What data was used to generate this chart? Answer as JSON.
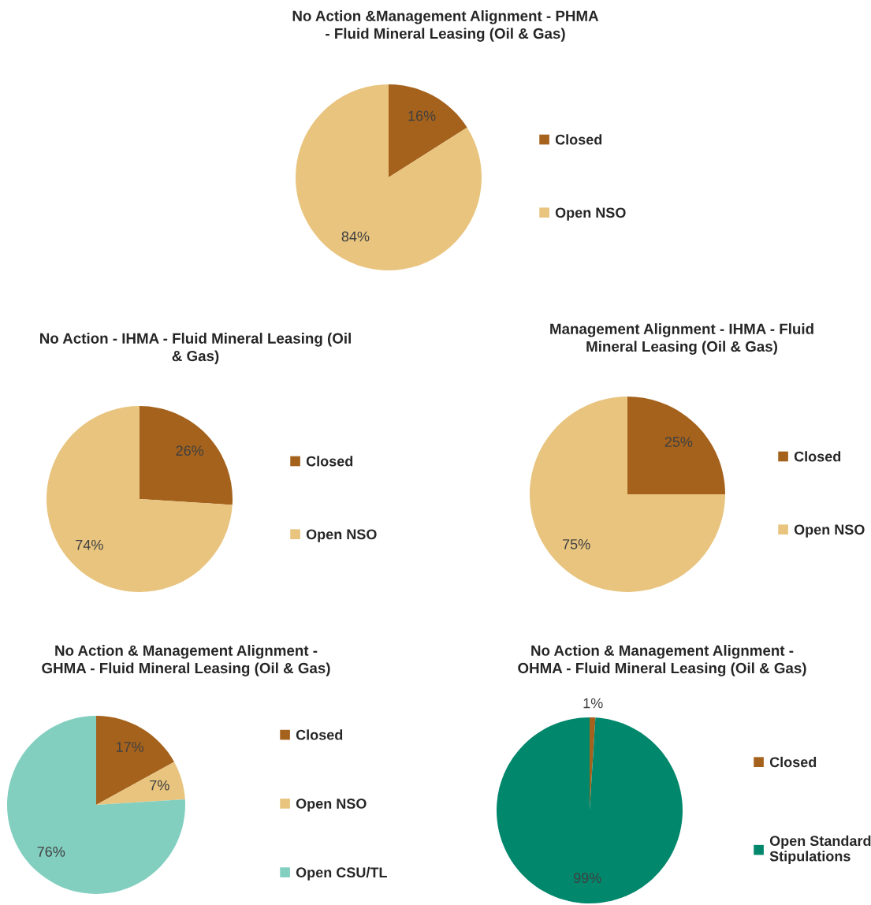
{
  "chart_data": [
    {
      "type": "pie",
      "title": "No Action &Management Alignment - PHMA\n- Fluid Mineral Leasing (Oil & Gas)",
      "categories": [
        "Closed",
        "Open NSO"
      ],
      "values": [
        16,
        84
      ],
      "value_labels": [
        "16%",
        "84%"
      ],
      "colors": [
        "#a5621c",
        "#e8c47f"
      ],
      "legend": "right"
    },
    {
      "type": "pie",
      "title": "No Action - IHMA - Fluid Mineral Leasing (Oil\n& Gas)",
      "categories": [
        "Closed",
        "Open NSO"
      ],
      "values": [
        26,
        74
      ],
      "value_labels": [
        "26%",
        "74%"
      ],
      "colors": [
        "#a5621c",
        "#e8c47f"
      ],
      "legend": "right"
    },
    {
      "type": "pie",
      "title": "Management Alignment - IHMA - Fluid\nMineral Leasing (Oil & Gas)",
      "categories": [
        "Closed",
        "Open NSO"
      ],
      "values": [
        25,
        75
      ],
      "value_labels": [
        "25%",
        "75%"
      ],
      "colors": [
        "#a5621c",
        "#e8c47f"
      ],
      "legend": "right"
    },
    {
      "type": "pie",
      "title": "No Action & Management Alignment -\nGHMA - Fluid Mineral Leasing (Oil & Gas)",
      "categories": [
        "Closed",
        "Open NSO",
        "Open CSU/TL"
      ],
      "values": [
        17,
        7,
        76
      ],
      "value_labels": [
        "17%",
        "7%",
        "76%"
      ],
      "colors": [
        "#a5621c",
        "#e8c47f",
        "#82cfc0"
      ],
      "legend": "right"
    },
    {
      "type": "pie",
      "title": "No Action & Management Alignment -\nOHMA - Fluid Mineral Leasing (Oil & Gas)",
      "categories": [
        "Closed",
        "Open Standard\nStipulations"
      ],
      "values": [
        1,
        99
      ],
      "value_labels": [
        "1%",
        "99%"
      ],
      "colors": [
        "#a5621c",
        "#00876c"
      ],
      "legend": "right"
    }
  ]
}
